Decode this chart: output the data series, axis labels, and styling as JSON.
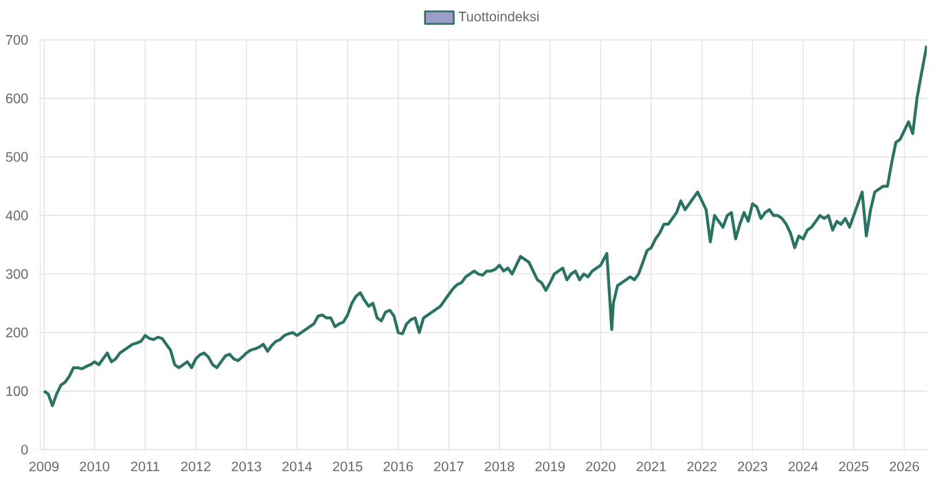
{
  "chart_data": {
    "type": "line",
    "legend": "top",
    "grid": true,
    "xlim": [
      "2008-12-05",
      "2026-06-12"
    ],
    "ylim": [
      0,
      700
    ],
    "xticks": [
      "2009",
      "2010",
      "2011",
      "2012",
      "2013",
      "2014",
      "2015",
      "2016",
      "2017",
      "2018",
      "2019",
      "2020",
      "2021",
      "2022",
      "2023",
      "2024",
      "2025",
      "2026"
    ],
    "yticks": [
      0,
      100,
      200,
      300,
      400,
      500,
      600,
      700
    ],
    "x": [
      "2009-01",
      "2009-02",
      "2009-03",
      "2009-04",
      "2009-05",
      "2009-06",
      "2009-07",
      "2009-08",
      "2009-09",
      "2009-10",
      "2009-11",
      "2009-12",
      "2010-01",
      "2010-02",
      "2010-03",
      "2010-04",
      "2010-05",
      "2010-06",
      "2010-07",
      "2010-08",
      "2010-09",
      "2010-10",
      "2010-11",
      "2010-12",
      "2011-01",
      "2011-02",
      "2011-03",
      "2011-04",
      "2011-05",
      "2011-06",
      "2011-07",
      "2011-08",
      "2011-09",
      "2011-10",
      "2011-11",
      "2011-12",
      "2012-01",
      "2012-02",
      "2012-03",
      "2012-04",
      "2012-05",
      "2012-06",
      "2012-07",
      "2012-08",
      "2012-09",
      "2012-10",
      "2012-11",
      "2012-12",
      "2013-01",
      "2013-02",
      "2013-03",
      "2013-04",
      "2013-05",
      "2013-06",
      "2013-07",
      "2013-08",
      "2013-09",
      "2013-10",
      "2013-11",
      "2013-12",
      "2014-01",
      "2014-02",
      "2014-03",
      "2014-04",
      "2014-05",
      "2014-06",
      "2014-07",
      "2014-08",
      "2014-09",
      "2014-10",
      "2014-11",
      "2014-12",
      "2015-01",
      "2015-02",
      "2015-03",
      "2015-04",
      "2015-05",
      "2015-06",
      "2015-07",
      "2015-08",
      "2015-09",
      "2015-10",
      "2015-11",
      "2015-12",
      "2016-01",
      "2016-02",
      "2016-03",
      "2016-04",
      "2016-05",
      "2016-06",
      "2016-07",
      "2016-08",
      "2016-09",
      "2016-10",
      "2016-11",
      "2016-12",
      "2017-01",
      "2017-02",
      "2017-03",
      "2017-04",
      "2017-05",
      "2017-06",
      "2017-07",
      "2017-08",
      "2017-09",
      "2017-10",
      "2017-11",
      "2017-12",
      "2018-01",
      "2018-02",
      "2018-03",
      "2018-04",
      "2018-05",
      "2018-06",
      "2018-07",
      "2018-08",
      "2018-09",
      "2018-10",
      "2018-11",
      "2018-12",
      "2019-01",
      "2019-02",
      "2019-03",
      "2019-04",
      "2019-05",
      "2019-06",
      "2019-07",
      "2019-08",
      "2019-09",
      "2019-10",
      "2019-11",
      "2019-12",
      "2020-01",
      "2020-02-15",
      "2020-03-20",
      "2020-04",
      "2020-05",
      "2020-06",
      "2020-07",
      "2020-08",
      "2020-09",
      "2020-10",
      "2020-11",
      "2020-12",
      "2021-01",
      "2021-02",
      "2021-03",
      "2021-04",
      "2021-05",
      "2021-06",
      "2021-07",
      "2021-08",
      "2021-09",
      "2021-10",
      "2021-11",
      "2021-12",
      "2022-01",
      "2022-02",
      "2022-03",
      "2022-04",
      "2022-05",
      "2022-06",
      "2022-07",
      "2022-08",
      "2022-09",
      "2022-10",
      "2022-11",
      "2022-12",
      "2023-01",
      "2023-02",
      "2023-03",
      "2023-04",
      "2023-05",
      "2023-06",
      "2023-07",
      "2023-08",
      "2023-09",
      "2023-10",
      "2023-11",
      "2023-12",
      "2024-01",
      "2024-02",
      "2024-03",
      "2024-04",
      "2024-05",
      "2024-06",
      "2024-07",
      "2024-08",
      "2024-09",
      "2024-10",
      "2024-11",
      "2024-12",
      "2025-01",
      "2025-02",
      "2025-03",
      "2025-04",
      "2025-05",
      "2025-06",
      "2025-07",
      "2025-08",
      "2025-09",
      "2025-10",
      "2025-11",
      "2025-12",
      "2026-01",
      "2026-02",
      "2026-03",
      "2026-04",
      "2026-05",
      "2026-06-10"
    ],
    "series": [
      {
        "name": "Tuottoindeksi",
        "color": "#2a7363",
        "values": [
          100,
          95,
          75,
          95,
          110,
          115,
          125,
          140,
          140,
          138,
          142,
          145,
          150,
          145,
          155,
          165,
          150,
          155,
          165,
          170,
          175,
          180,
          182,
          185,
          195,
          190,
          188,
          192,
          190,
          180,
          170,
          145,
          140,
          145,
          150,
          140,
          155,
          162,
          165,
          158,
          145,
          140,
          150,
          160,
          163,
          155,
          152,
          158,
          165,
          170,
          172,
          175,
          180,
          168,
          178,
          185,
          188,
          195,
          198,
          200,
          195,
          200,
          205,
          210,
          215,
          228,
          230,
          225,
          225,
          210,
          215,
          218,
          230,
          250,
          262,
          268,
          255,
          245,
          250,
          225,
          220,
          235,
          238,
          228,
          200,
          198,
          215,
          222,
          225,
          200,
          225,
          230,
          235,
          240,
          245,
          255,
          265,
          275,
          282,
          285,
          295,
          300,
          305,
          300,
          298,
          305,
          305,
          308,
          315,
          305,
          310,
          300,
          315,
          330,
          325,
          320,
          305,
          290,
          285,
          272,
          285,
          300,
          305,
          310,
          290,
          300,
          305,
          290,
          300,
          295,
          305,
          310,
          315,
          335,
          205,
          250,
          280,
          285,
          290,
          295,
          290,
          300,
          320,
          340,
          345,
          360,
          370,
          385,
          385,
          395,
          405,
          425,
          410,
          420,
          430,
          440,
          425,
          410,
          355,
          400,
          390,
          380,
          400,
          405,
          360,
          385,
          405,
          390,
          420,
          415,
          395,
          405,
          410,
          400,
          400,
          395,
          385,
          370,
          345,
          365,
          360,
          375,
          380,
          390,
          400,
          395,
          400,
          375,
          390,
          385,
          395,
          380,
          400,
          420,
          440,
          365,
          410,
          440,
          445,
          450,
          450,
          490,
          525,
          530,
          545,
          560,
          540,
          600,
          640,
          690
        ]
      }
    ]
  }
}
